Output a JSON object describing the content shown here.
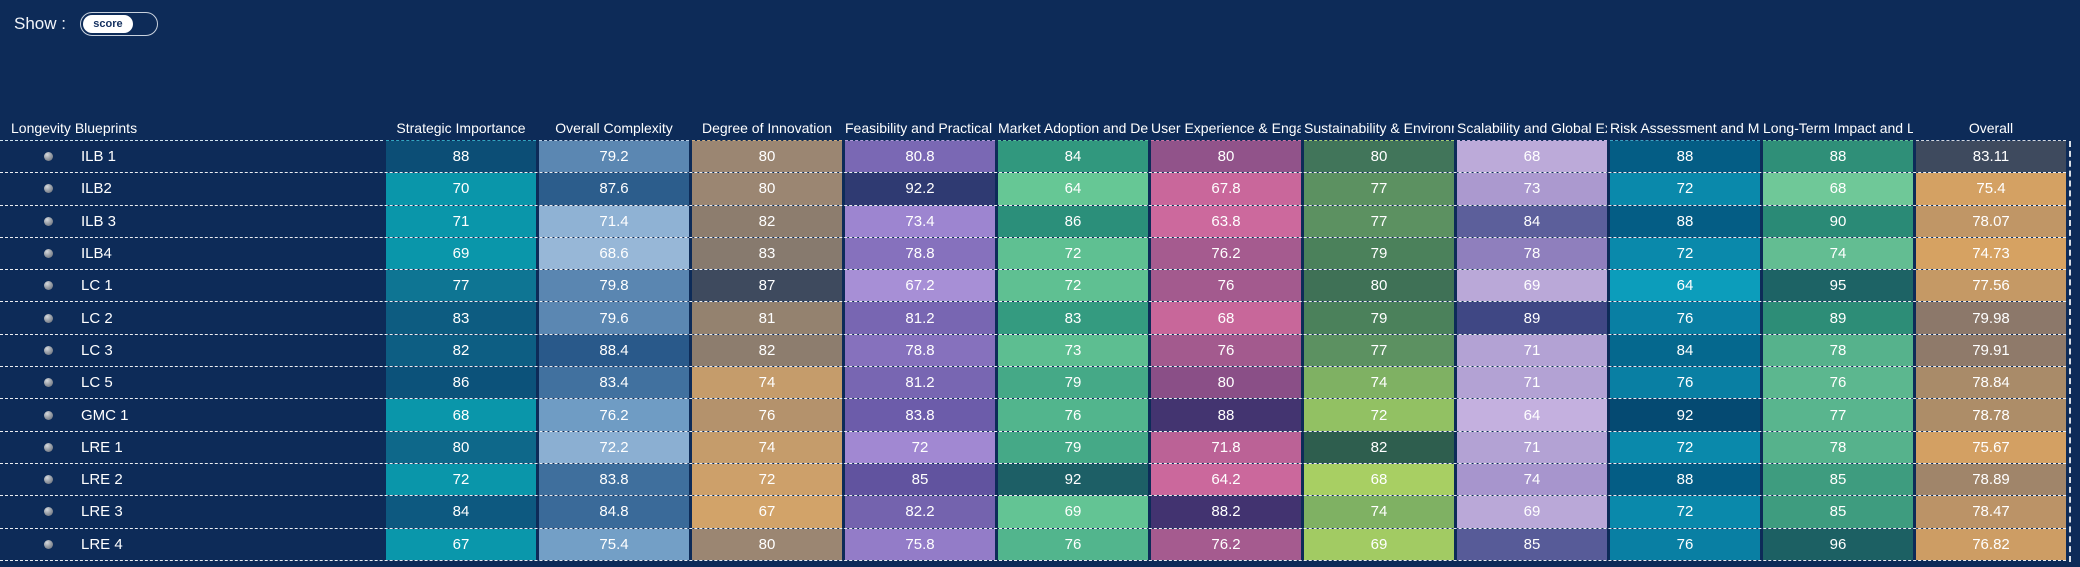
{
  "colors": {
    "background": "#0d2b58",
    "text": "#ffffff",
    "row_separator": "#ffffff",
    "corner_underline": "#cfe3ef",
    "toggle_border": "#c9d2de",
    "toggle_knob": "#ffffff",
    "toggle_text": "#14305f"
  },
  "toolbar": {
    "show_label": "Show :",
    "toggle_value": "score"
  },
  "chart_data": {
    "type": "heatmap",
    "title": "",
    "row_header": "Longevity Blueprints",
    "legend_position": "none",
    "grid": "dashed-row-separators",
    "columns": [
      {
        "label": "Strategic Importance",
        "underline": "#35a8c2"
      },
      {
        "label": "Overall Complexity",
        "underline": "#b9cfe6"
      },
      {
        "label": "Degree of Innovation",
        "underline": "#cfae80"
      },
      {
        "label": "Feasibility and Practical Ir",
        "underline": "#b4a0dd"
      },
      {
        "label": "Market Adoption and Dem",
        "underline": "#57c39b"
      },
      {
        "label": "User Experience & Engag",
        "underline": "#cf74a6"
      },
      {
        "label": "Sustainability & Environm",
        "underline": "#a9d277"
      },
      {
        "label": "Scalability and Global Exp",
        "underline": "#c7b4e4"
      },
      {
        "label": "Risk Assessment and Miti",
        "underline": "#3fa5c6"
      },
      {
        "label": "Long-Term Impact and Le",
        "underline": "#67c79b"
      },
      {
        "label": "Overall",
        "underline": "#d3d8e0"
      }
    ],
    "rows": [
      {
        "label": "ILB 1",
        "values": [
          88,
          79.2,
          80,
          80.8,
          84,
          80,
          80,
          68,
          88,
          88,
          83.11
        ],
        "colors": [
          "#0c4e76",
          "#5b87b2",
          "#9b8672",
          "#7a68b4",
          "#31987e",
          "#91538a",
          "#41755a",
          "#bcaad9",
          "#045d85",
          "#2f8f78",
          "#3e4a5e"
        ]
      },
      {
        "label": "ILB2",
        "values": [
          70,
          87.6,
          80,
          92.2,
          64,
          67.8,
          77,
          73,
          72,
          68,
          75.4
        ],
        "colors": [
          "#0a96aa",
          "#2c5d8c",
          "#9b8672",
          "#2f3a72",
          "#66c795",
          "#c9679b",
          "#5c9161",
          "#ab99cf",
          "#0a89ab",
          "#6fc898",
          "#d4a163"
        ]
      },
      {
        "label": "ILB 3",
        "values": [
          71,
          71.4,
          82,
          73.4,
          86,
          63.8,
          77,
          84,
          88,
          90,
          78.07
        ],
        "colors": [
          "#0a96aa",
          "#8fb2d4",
          "#8d7d6e",
          "#9d85d0",
          "#2b8f7a",
          "#cc699d",
          "#5c9161",
          "#5c5f9b",
          "#045d85",
          "#2a8a76",
          "#c09666"
        ]
      },
      {
        "label": "ILB4",
        "values": [
          69,
          68.6,
          83,
          78.8,
          72,
          76.2,
          79,
          78,
          72,
          74,
          74.73
        ],
        "colors": [
          "#0a96aa",
          "#97b7d7",
          "#877a6e",
          "#8671bd",
          "#5fc092",
          "#a55b8f",
          "#4b815b",
          "#8f7fbd",
          "#0a89ab",
          "#63bd92",
          "#d6a262"
        ]
      },
      {
        "label": "LC 1",
        "values": [
          77,
          79.8,
          87,
          67.2,
          72,
          76,
          80,
          69,
          64,
          95,
          77.56
        ],
        "colors": [
          "#0e7593",
          "#5a86b1",
          "#3e4a5e",
          "#a78fd6",
          "#5fc092",
          "#a35a8e",
          "#3f7156",
          "#baa8d8",
          "#0c9dbb",
          "#1d6365",
          "#c59965"
        ]
      },
      {
        "label": "LC 2",
        "values": [
          83,
          79.6,
          81,
          81.2,
          83,
          68,
          79,
          89,
          76,
          89,
          79.98
        ],
        "colors": [
          "#0d5c81",
          "#5b87b2",
          "#94826f",
          "#7866b2",
          "#349b80",
          "#c8679a",
          "#4b815b",
          "#3f4784",
          "#097fa3",
          "#2d8d77",
          "#8c786a"
        ]
      },
      {
        "label": "LC 3",
        "values": [
          82,
          88.4,
          82,
          78.8,
          73,
          76,
          77,
          71,
          84,
          78,
          79.91
        ],
        "colors": [
          "#0d5e83",
          "#29598a",
          "#8d7d6e",
          "#8671bd",
          "#5dbe91",
          "#a35a8e",
          "#5c9161",
          "#b3a2d4",
          "#05688e",
          "#56b28c",
          "#8f7a6a"
        ]
      },
      {
        "label": "LC 5",
        "values": [
          86,
          83.4,
          74,
          81.2,
          79,
          80,
          74,
          71,
          76,
          76,
          78.84
        ],
        "colors": [
          "#0c527a",
          "#41719f",
          "#c59c6b",
          "#7866b2",
          "#45a987",
          "#8a4f87",
          "#7fb163",
          "#b3a2d4",
          "#097fa3",
          "#5cb78f",
          "#a98b69"
        ]
      },
      {
        "label": "GMC 1",
        "values": [
          68,
          76.2,
          76,
          83.8,
          76,
          88,
          72,
          64,
          92,
          77,
          78.78
        ],
        "colors": [
          "#0a96aa",
          "#6f9cc4",
          "#b4926c",
          "#6c5caa",
          "#52b58d",
          "#433470",
          "#92c163",
          "#c4b0df",
          "#054a72",
          "#59b58e",
          "#ad8d68"
        ]
      },
      {
        "label": "LRE 1",
        "values": [
          80,
          72.2,
          74,
          72,
          79,
          71.8,
          82,
          71,
          72,
          78,
          75.67
        ],
        "colors": [
          "#0e688a",
          "#8bafd2",
          "#c59c6b",
          "#a188d2",
          "#45a987",
          "#bb6296",
          "#2e5e4e",
          "#b3a2d4",
          "#0a89ab",
          "#56b28c",
          "#d3a063"
        ]
      },
      {
        "label": "LRE 2",
        "values": [
          72,
          83.8,
          72,
          85,
          92,
          64.2,
          68,
          74,
          88,
          85,
          78.89
        ],
        "colors": [
          "#0a96aa",
          "#3f6f9d",
          "#cda06a",
          "#61539f",
          "#1d5f66",
          "#cb689c",
          "#a8cf63",
          "#a795cd",
          "#045d85",
          "#3e9c7f",
          "#a0856a"
        ]
      },
      {
        "label": "LRE 3",
        "values": [
          84,
          84.8,
          67,
          82.2,
          69,
          88.2,
          74,
          69,
          72,
          85,
          78.47
        ],
        "colors": [
          "#0d5980",
          "#3a6a99",
          "#d2a369",
          "#7463ae",
          "#63c494",
          "#423370",
          "#7fb163",
          "#baa8d8",
          "#0a89ab",
          "#3e9c7f",
          "#bb9367"
        ]
      },
      {
        "label": "LRE 4",
        "values": [
          67,
          75.4,
          80,
          75.8,
          76,
          76.2,
          69,
          85,
          76,
          96,
          76.82
        ],
        "colors": [
          "#0a97ab",
          "#739fc6",
          "#9b8672",
          "#937cc8",
          "#52b58d",
          "#a55b8f",
          "#a2cb63",
          "#575b98",
          "#097fa3",
          "#1c6063",
          "#cd9d64"
        ]
      }
    ]
  }
}
